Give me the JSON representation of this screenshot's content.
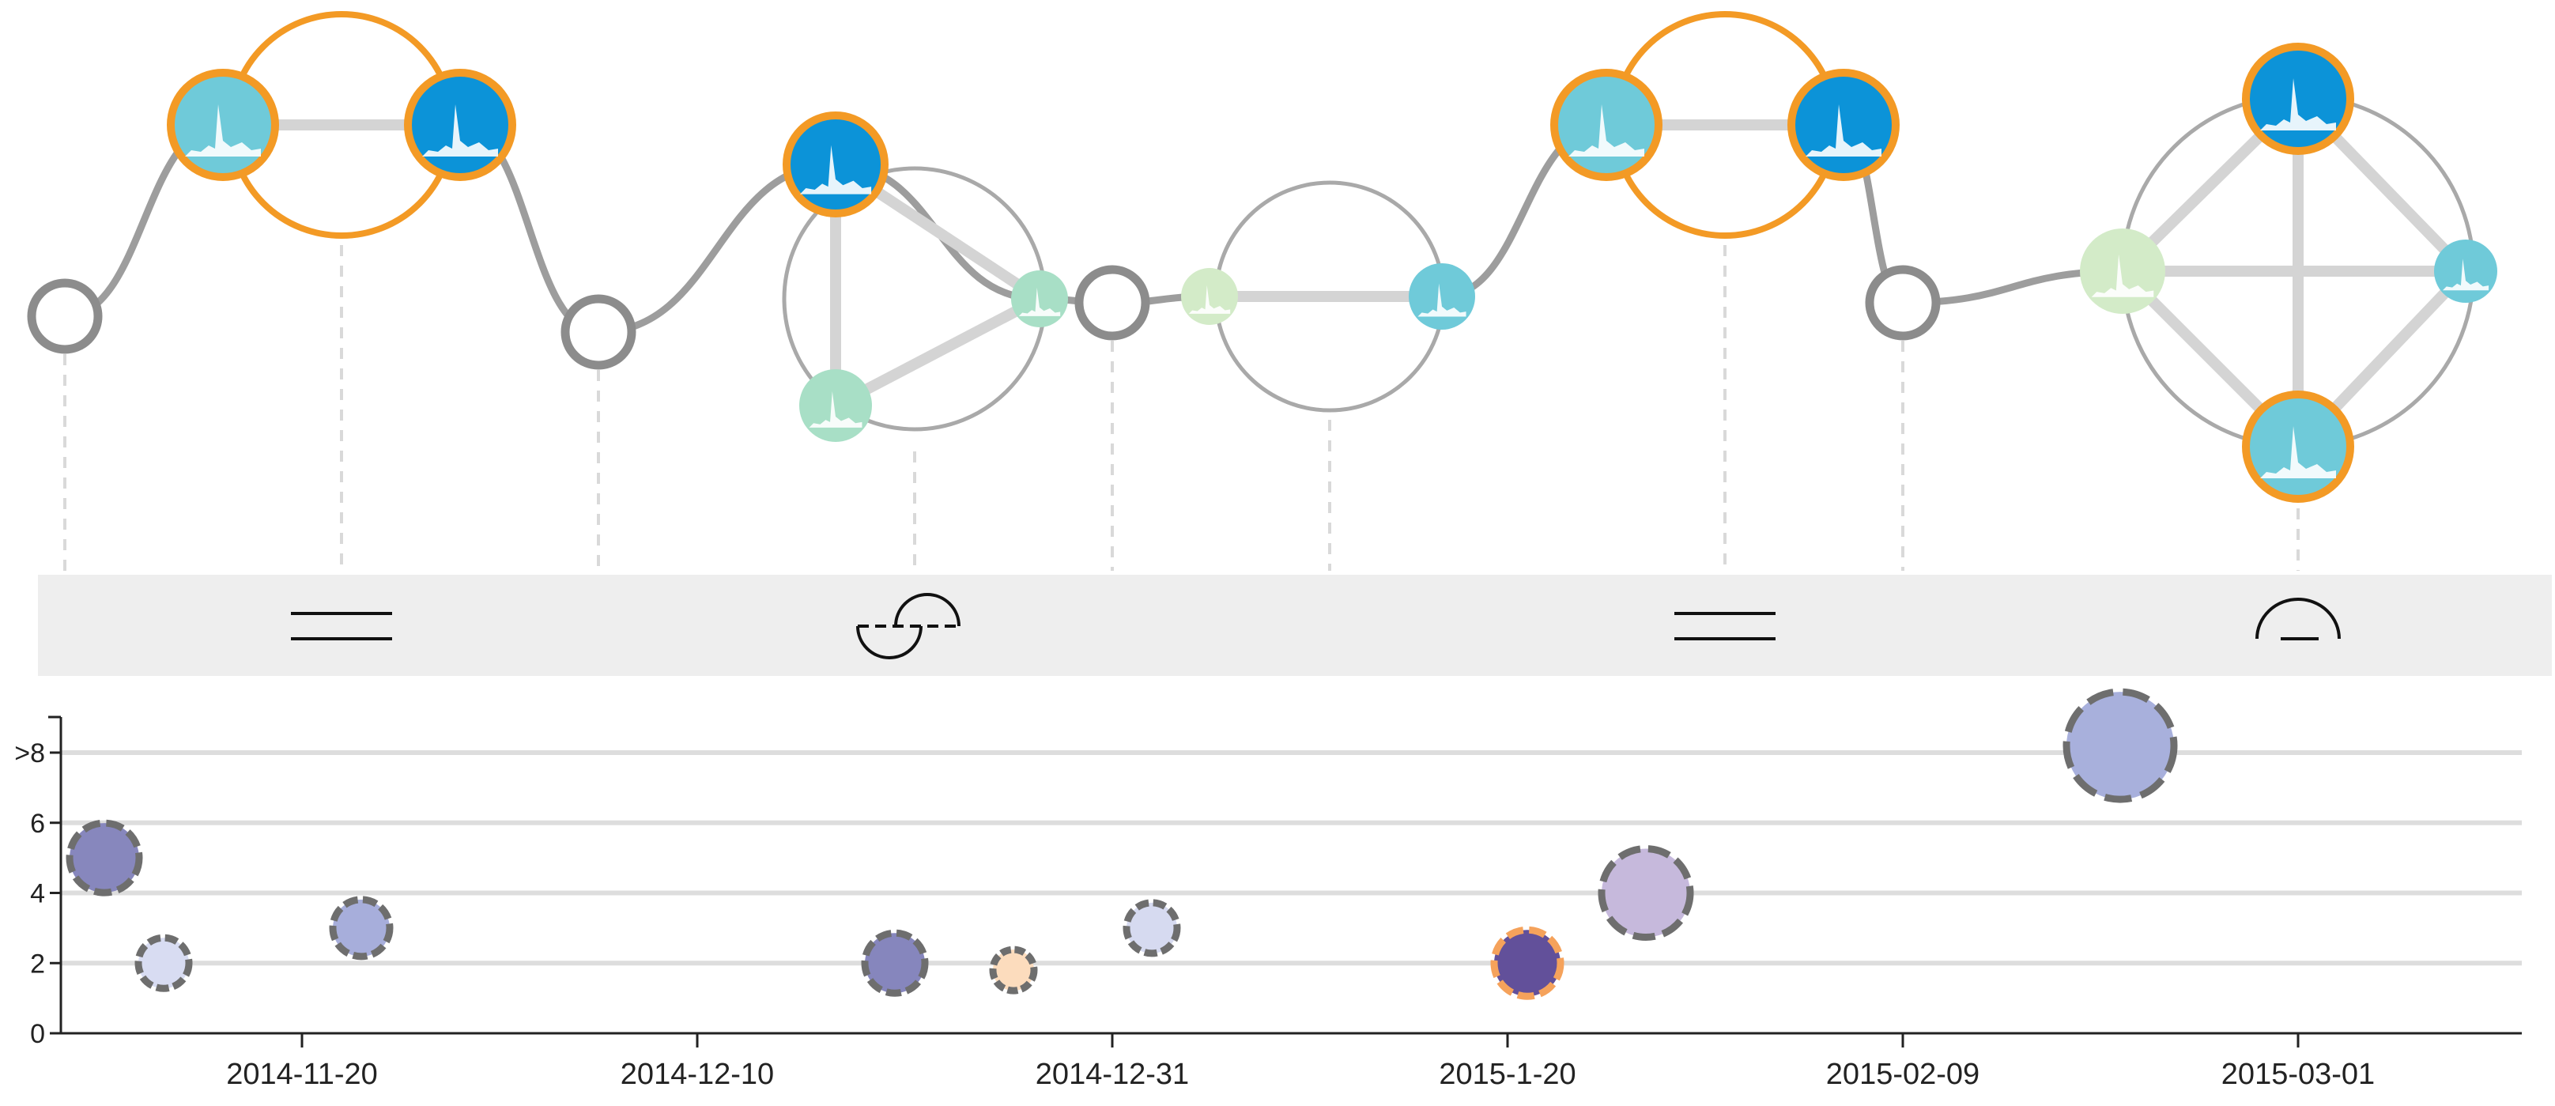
{
  "chart_data": {
    "type": "scatter",
    "title": "",
    "xlabel": "",
    "ylabel": "",
    "x_ticks": [
      "2014-11-20",
      "2014-12-10",
      "2014-12-31",
      "2015-1-20",
      "2015-02-09",
      "2015-03-01"
    ],
    "y_ticks": [
      "0",
      "2",
      "4",
      "6",
      ">8"
    ],
    "ylim": [
      0,
      9
    ],
    "grid": "horizontal",
    "colors": {
      "node_ring_highlight": "#f39a25",
      "node_ring_plain": "#8c8c8c",
      "trail": "#9d9d9d",
      "pattern_band": "#eeeeee",
      "gridline": "#dddddd"
    },
    "bubbles": [
      {
        "date": "2014-11-10",
        "value": 5.0,
        "size": 44,
        "fill": "#8787bd",
        "ring": "#6e6e6e",
        "ring_style": "dashed"
      },
      {
        "date": "2014-11-13",
        "value": 2.0,
        "size": 32,
        "fill": "#d8dcf2",
        "ring": "#6e6e6e",
        "ring_style": "dashed"
      },
      {
        "date": "2014-11-23",
        "value": 3.0,
        "size": 36,
        "fill": "#a7aedb",
        "ring": "#6e6e6e",
        "ring_style": "dashed"
      },
      {
        "date": "2014-12-20",
        "value": 2.0,
        "size": 38,
        "fill": "#8686bd",
        "ring": "#6e6e6e",
        "ring_style": "dashed"
      },
      {
        "date": "2014-12-26",
        "value": 1.8,
        "size": 26,
        "fill": "#fcdcbd",
        "ring": "#6e6e6e",
        "ring_style": "dashed"
      },
      {
        "date": "2015-01-02",
        "value": 3.0,
        "size": 32,
        "fill": "#d6daf0",
        "ring": "#6e6e6e",
        "ring_style": "dashed"
      },
      {
        "date": "2015-01-21",
        "value": 2.0,
        "size": 42,
        "fill": "#62509a",
        "ring": "#f5a25b",
        "ring_style": "dashed"
      },
      {
        "date": "2015-01-27",
        "value": 4.0,
        "size": 56,
        "fill": "#c6b9dc",
        "ring": "#6e6e6e",
        "ring_style": "dashed"
      },
      {
        "date": "2015-02-20",
        "value": 8.2,
        "size": 68,
        "fill": "#a8b0dc",
        "ring": "#6e6e6e",
        "ring_style": "dashed"
      }
    ],
    "timeline_nodes": [
      {
        "date": "2014-11-08",
        "kind": "empty"
      },
      {
        "date": "2014-11-22",
        "kind": "group",
        "members": [
          {
            "fill": "#6fcad9",
            "ring": "highlight",
            "spike": true
          },
          {
            "fill": "#0c93d8",
            "ring": "highlight",
            "spike": true
          }
        ],
        "group_ring": "highlight"
      },
      {
        "date": "2014-12-05",
        "kind": "empty"
      },
      {
        "date": "2014-12-21",
        "kind": "group",
        "members": [
          {
            "fill": "#0c93d8",
            "ring": "highlight",
            "spike": true
          },
          {
            "fill": "#a8dfc6",
            "ring": "none",
            "spike": true
          },
          {
            "fill": "#a8dfc6",
            "ring": "none",
            "spike": true
          }
        ],
        "group_ring": "plain"
      },
      {
        "date": "2014-12-31",
        "kind": "empty"
      },
      {
        "date": "2015-01-11",
        "kind": "group",
        "members": [
          {
            "fill": "#d3ebc8",
            "ring": "none",
            "spike": true
          },
          {
            "fill": "#6fcad9",
            "ring": "none",
            "spike": true
          }
        ],
        "group_ring": "plain"
      },
      {
        "date": "2015-01-31",
        "kind": "group",
        "members": [
          {
            "fill": "#6fcad9",
            "ring": "highlight",
            "spike": true
          },
          {
            "fill": "#0c93d8",
            "ring": "highlight",
            "spike": true
          }
        ],
        "group_ring": "highlight"
      },
      {
        "date": "2015-02-09",
        "kind": "empty"
      },
      {
        "date": "2015-03-01",
        "kind": "group",
        "members": [
          {
            "fill": "#0c93d8",
            "ring": "highlight",
            "spike": true
          },
          {
            "fill": "#d3ebc8",
            "ring": "none",
            "spike": true
          },
          {
            "fill": "#6fcad9",
            "ring": "none",
            "spike": true
          },
          {
            "fill": "#6fcad9",
            "ring": "highlight",
            "spike": true
          }
        ],
        "group_ring": "plain"
      }
    ],
    "pattern_glyphs": [
      {
        "date": "2014-11-22",
        "pattern": "parallel-lines-icon"
      },
      {
        "date": "2014-12-21",
        "pattern": "split-semicircles-icon"
      },
      {
        "date": "2015-01-31",
        "pattern": "parallel-lines-icon"
      },
      {
        "date": "2015-03-01",
        "pattern": "semicircle-over-line-icon"
      }
    ]
  }
}
